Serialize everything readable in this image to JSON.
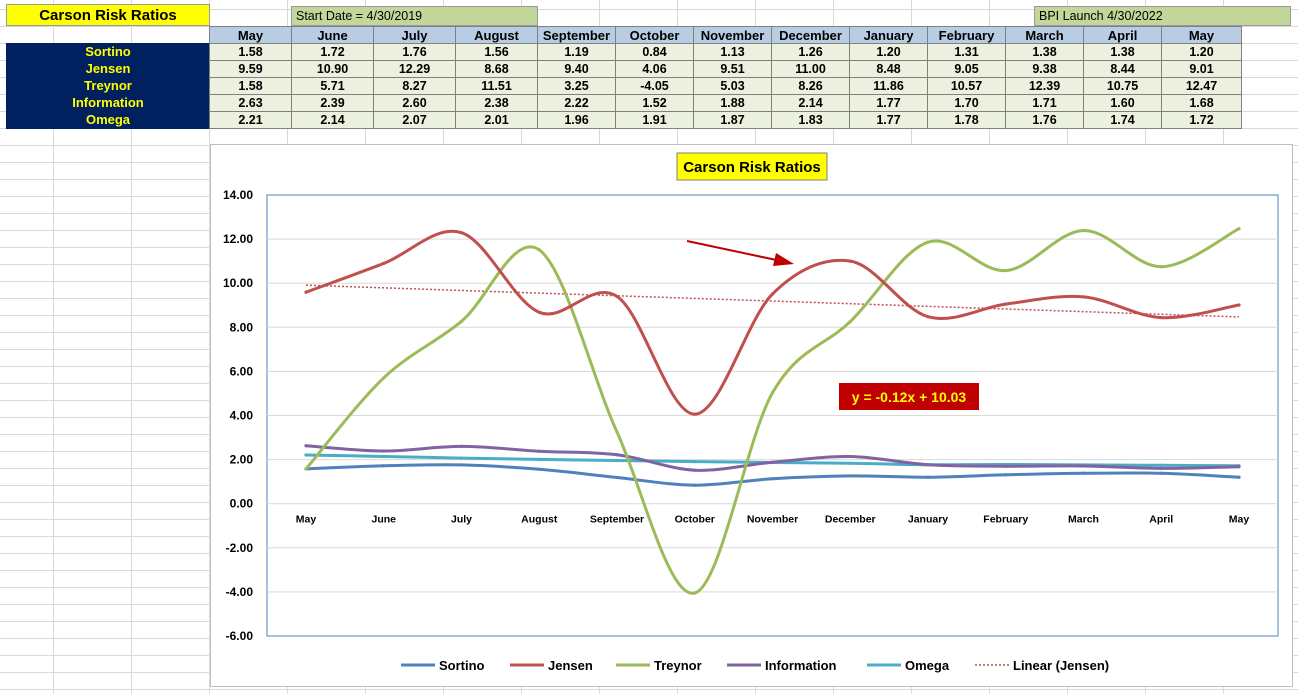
{
  "sheet": {
    "title": "Carson Risk Ratios",
    "start_note": "Start Date = 4/30/2019",
    "launch_note": "BPI Launch 4/30/2022",
    "months": [
      "May",
      "June",
      "July",
      "August",
      "September",
      "October",
      "November",
      "December",
      "January",
      "February",
      "March",
      "April",
      "May"
    ],
    "rows": [
      {
        "label": "Sortino",
        "values": [
          "1.58",
          "1.72",
          "1.76",
          "1.56",
          "1.19",
          "0.84",
          "1.13",
          "1.26",
          "1.20",
          "1.31",
          "1.38",
          "1.38",
          "1.20"
        ]
      },
      {
        "label": "Jensen",
        "values": [
          "9.59",
          "10.90",
          "12.29",
          "8.68",
          "9.40",
          "4.06",
          "9.51",
          "11.00",
          "8.48",
          "9.05",
          "9.38",
          "8.44",
          "9.01"
        ]
      },
      {
        "label": "Treynor",
        "values": [
          "1.58",
          "5.71",
          "8.27",
          "11.51",
          "3.25",
          "-4.05",
          "5.03",
          "8.26",
          "11.86",
          "10.57",
          "12.39",
          "10.75",
          "12.47"
        ]
      },
      {
        "label": "Information",
        "values": [
          "2.63",
          "2.39",
          "2.60",
          "2.38",
          "2.22",
          "1.52",
          "1.88",
          "2.14",
          "1.77",
          "1.70",
          "1.71",
          "1.60",
          "1.68"
        ]
      },
      {
        "label": "Omega",
        "values": [
          "2.21",
          "2.14",
          "2.07",
          "2.01",
          "1.96",
          "1.91",
          "1.87",
          "1.83",
          "1.77",
          "1.78",
          "1.76",
          "1.74",
          "1.72"
        ]
      }
    ]
  },
  "chart_data": {
    "type": "line",
    "title": "Carson Risk Ratios",
    "categories": [
      "May",
      "June",
      "July",
      "August",
      "September",
      "October",
      "November",
      "December",
      "January",
      "February",
      "March",
      "April",
      "May"
    ],
    "ylim": [
      -6,
      14
    ],
    "ytick_step": 2,
    "ytick_labels": [
      "14.00",
      "12.00",
      "10.00",
      "8.00",
      "6.00",
      "4.00",
      "2.00",
      "0.00",
      "-2.00",
      "-4.00",
      "-6.00"
    ],
    "grid": true,
    "legend_position": "bottom",
    "series": [
      {
        "name": "Sortino",
        "color": "#4f81bd",
        "values": [
          1.58,
          1.72,
          1.76,
          1.56,
          1.19,
          0.84,
          1.13,
          1.26,
          1.2,
          1.31,
          1.38,
          1.38,
          1.2
        ]
      },
      {
        "name": "Jensen",
        "color": "#c0504d",
        "values": [
          9.59,
          10.9,
          12.29,
          8.68,
          9.4,
          4.06,
          9.51,
          11.0,
          8.48,
          9.05,
          9.38,
          8.44,
          9.01
        ]
      },
      {
        "name": "Treynor",
        "color": "#9bbb59",
        "values": [
          1.58,
          5.71,
          8.27,
          11.51,
          3.25,
          -4.05,
          5.03,
          8.26,
          11.86,
          10.57,
          12.39,
          10.75,
          12.47
        ]
      },
      {
        "name": "Information",
        "color": "#8064a2",
        "values": [
          2.63,
          2.39,
          2.6,
          2.38,
          2.22,
          1.52,
          1.88,
          2.14,
          1.77,
          1.7,
          1.71,
          1.6,
          1.68
        ]
      },
      {
        "name": "Omega",
        "color": "#4bacc6",
        "values": [
          2.21,
          2.14,
          2.07,
          2.01,
          1.96,
          1.91,
          1.87,
          1.83,
          1.77,
          1.78,
          1.76,
          1.74,
          1.72
        ]
      }
    ],
    "trendline": {
      "name": "Linear (Jensen)",
      "color": "#c0504d",
      "slope": -0.12,
      "intercept": 10.03
    },
    "annotations": {
      "equation": "y = -0.12x + 10.03"
    }
  },
  "colors": {
    "title_bg": "#ffff00",
    "header_bg": "#b8cce4",
    "label_bg": "#002060",
    "label_fg": "#ffff00",
    "value_bg": "#ebf1de",
    "note_bg": "#c4d79b",
    "equation_bg": "#c00000",
    "equation_fg": "#ffff00",
    "arrow": "#c00000"
  }
}
